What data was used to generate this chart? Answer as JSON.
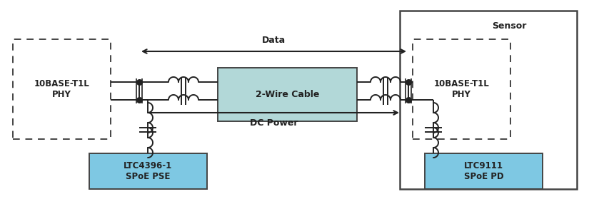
{
  "fig_width": 8.25,
  "fig_height": 2.79,
  "dpi": 100,
  "bg_color": "#ffffff",
  "line_color": "#222222",
  "text_color": "#222222",
  "phy_left_text": "10BASE-T1L\nPHY",
  "phy_right_text": "10BASE-T1L\nPHY",
  "cable_text": "2-Wire Cable",
  "ltc_left_text": "LTC4396-1\nSPoE PSE",
  "ltc_right_text": "LTC9111\nSPoE PD",
  "data_label": "Data",
  "dcpower_label": "DC Power",
  "sensor_label": "Sensor",
  "cable_color": "#b2d8d8",
  "ltc_color": "#7ec8e3"
}
